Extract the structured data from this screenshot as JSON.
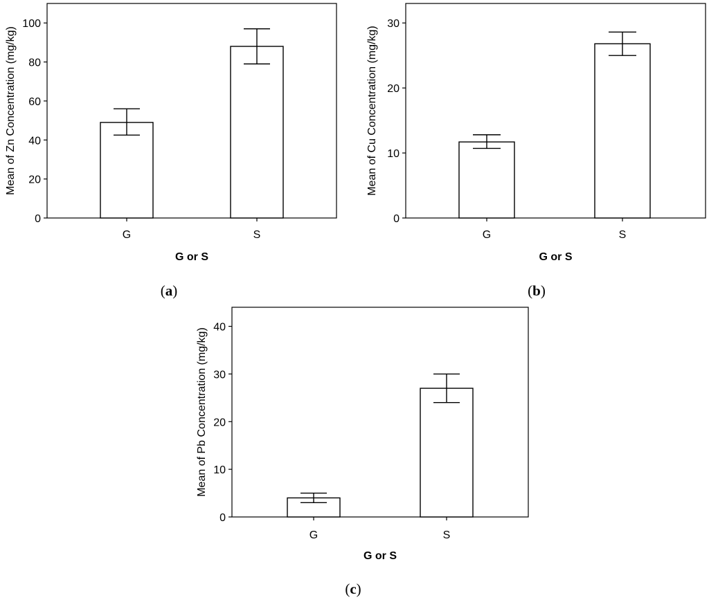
{
  "figure": {
    "panel_labels": [
      "a",
      "b",
      "c"
    ]
  },
  "chart_data": [
    {
      "type": "bar",
      "panel": "a",
      "categories": [
        "G",
        "S"
      ],
      "values": [
        49,
        88
      ],
      "error_low": [
        42.5,
        79
      ],
      "error_high": [
        56,
        97
      ],
      "xlabel": "G or S",
      "ylabel": "Mean of Zn Concentration (mg/kg)",
      "ylim": [
        0,
        110
      ],
      "yticks": [
        0,
        20,
        40,
        60,
        80,
        100
      ],
      "grid": false
    },
    {
      "type": "bar",
      "panel": "b",
      "categories": [
        "G",
        "S"
      ],
      "values": [
        11.7,
        26.8
      ],
      "error_low": [
        10.7,
        25
      ],
      "error_high": [
        12.8,
        28.6
      ],
      "xlabel": "G or S",
      "ylabel": "Mean of Cu Concentration (mg/kg)",
      "ylim": [
        0,
        33
      ],
      "yticks": [
        0,
        10,
        20,
        30
      ],
      "grid": false
    },
    {
      "type": "bar",
      "panel": "c",
      "categories": [
        "G",
        "S"
      ],
      "values": [
        4,
        27
      ],
      "error_low": [
        3,
        24
      ],
      "error_high": [
        5,
        30
      ],
      "xlabel": "G or S",
      "ylabel": "Mean of Pb Concentration (mg/kg)",
      "ylim": [
        0,
        44
      ],
      "yticks": [
        0,
        10,
        20,
        30,
        40
      ],
      "grid": false
    }
  ]
}
